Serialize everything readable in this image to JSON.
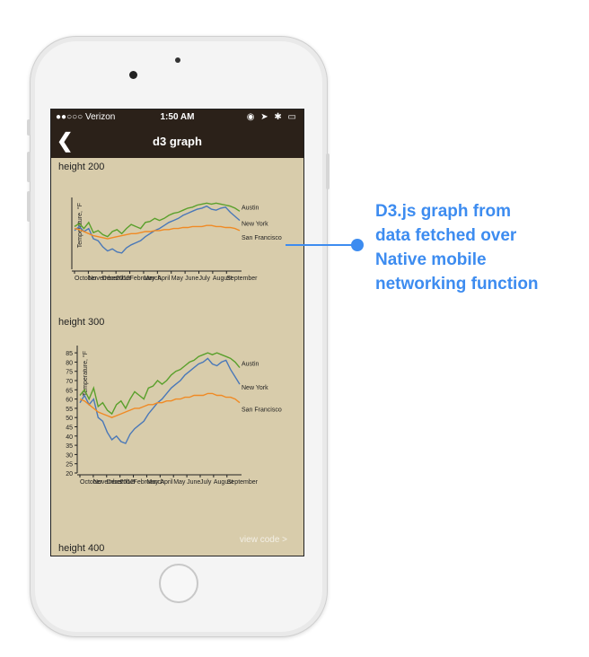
{
  "status_bar": {
    "carrier": "●●○○○ Verizon",
    "time": "1:50 AM",
    "right": "◉ ➤ ✱ ▭"
  },
  "nav": {
    "title": "d3 graph",
    "back_glyph": "❮"
  },
  "sections": [
    {
      "label": "height 200"
    },
    {
      "label": "height 300"
    },
    {
      "label": "height 400"
    }
  ],
  "view_code": "view code >",
  "callout": {
    "lines": [
      "D3.js graph from",
      "data fetched over",
      "Native mobile",
      "networking function"
    ]
  },
  "colors": {
    "austin": "#5aa02c",
    "new_york": "#4a78b8",
    "san_francisco": "#f08a24",
    "accent": "#3d8cf0"
  },
  "chart_data": [
    {
      "type": "line",
      "ylabel": "Temperature, °F",
      "x_ticks": [
        "October",
        "November",
        "December",
        "2012",
        "February",
        "March",
        "April",
        "May",
        "June",
        "July",
        "August",
        "September"
      ],
      "y_ticks": [],
      "ylim": [
        20,
        87
      ],
      "series": [
        {
          "name": "Austin",
          "values": [
            62,
            65,
            60,
            66,
            56,
            58,
            54,
            52,
            57,
            59,
            55,
            60,
            64,
            62,
            60,
            66,
            67,
            70,
            68,
            70,
            73,
            75,
            76,
            78,
            80,
            81,
            83,
            84,
            85,
            84,
            85,
            84,
            83,
            82,
            80,
            77
          ]
        },
        {
          "name": "New York",
          "values": [
            58,
            62,
            57,
            60,
            50,
            48,
            42,
            38,
            40,
            37,
            36,
            41,
            44,
            46,
            48,
            52,
            55,
            58,
            60,
            63,
            66,
            68,
            70,
            73,
            75,
            77,
            79,
            80,
            82,
            79,
            78,
            80,
            81,
            76,
            72,
            68
          ]
        },
        {
          "name": "San Francisco",
          "values": [
            60,
            59,
            57,
            55,
            53,
            52,
            51,
            50,
            51,
            52,
            53,
            54,
            55,
            55,
            56,
            57,
            57,
            58,
            58,
            59,
            59,
            60,
            60,
            61,
            61,
            62,
            62,
            62,
            63,
            63,
            62,
            62,
            61,
            61,
            60,
            58
          ]
        }
      ]
    },
    {
      "type": "line",
      "ylabel": "Temperature, °F",
      "x_ticks": [
        "October",
        "November",
        "December",
        "2012",
        "February",
        "March",
        "April",
        "May",
        "June",
        "July",
        "August",
        "September"
      ],
      "y_ticks": [
        "85",
        "80",
        "75",
        "70",
        "65",
        "60",
        "55",
        "50",
        "45",
        "40",
        "35",
        "30",
        "25",
        "20"
      ],
      "ylim": [
        20,
        87
      ],
      "series": [
        {
          "name": "Austin",
          "values": [
            62,
            65,
            60,
            66,
            56,
            58,
            54,
            52,
            57,
            59,
            55,
            60,
            64,
            62,
            60,
            66,
            67,
            70,
            68,
            70,
            73,
            75,
            76,
            78,
            80,
            81,
            83,
            84,
            85,
            84,
            85,
            84,
            83,
            82,
            80,
            77
          ]
        },
        {
          "name": "New York",
          "values": [
            58,
            62,
            57,
            60,
            50,
            48,
            42,
            38,
            40,
            37,
            36,
            41,
            44,
            46,
            48,
            52,
            55,
            58,
            60,
            63,
            66,
            68,
            70,
            73,
            75,
            77,
            79,
            80,
            82,
            79,
            78,
            80,
            81,
            76,
            72,
            68
          ]
        },
        {
          "name": "San Francisco",
          "values": [
            60,
            59,
            57,
            55,
            53,
            52,
            51,
            50,
            51,
            52,
            53,
            54,
            55,
            55,
            56,
            57,
            57,
            58,
            58,
            59,
            59,
            60,
            60,
            61,
            61,
            62,
            62,
            62,
            63,
            63,
            62,
            62,
            61,
            61,
            60,
            58
          ]
        }
      ]
    }
  ]
}
